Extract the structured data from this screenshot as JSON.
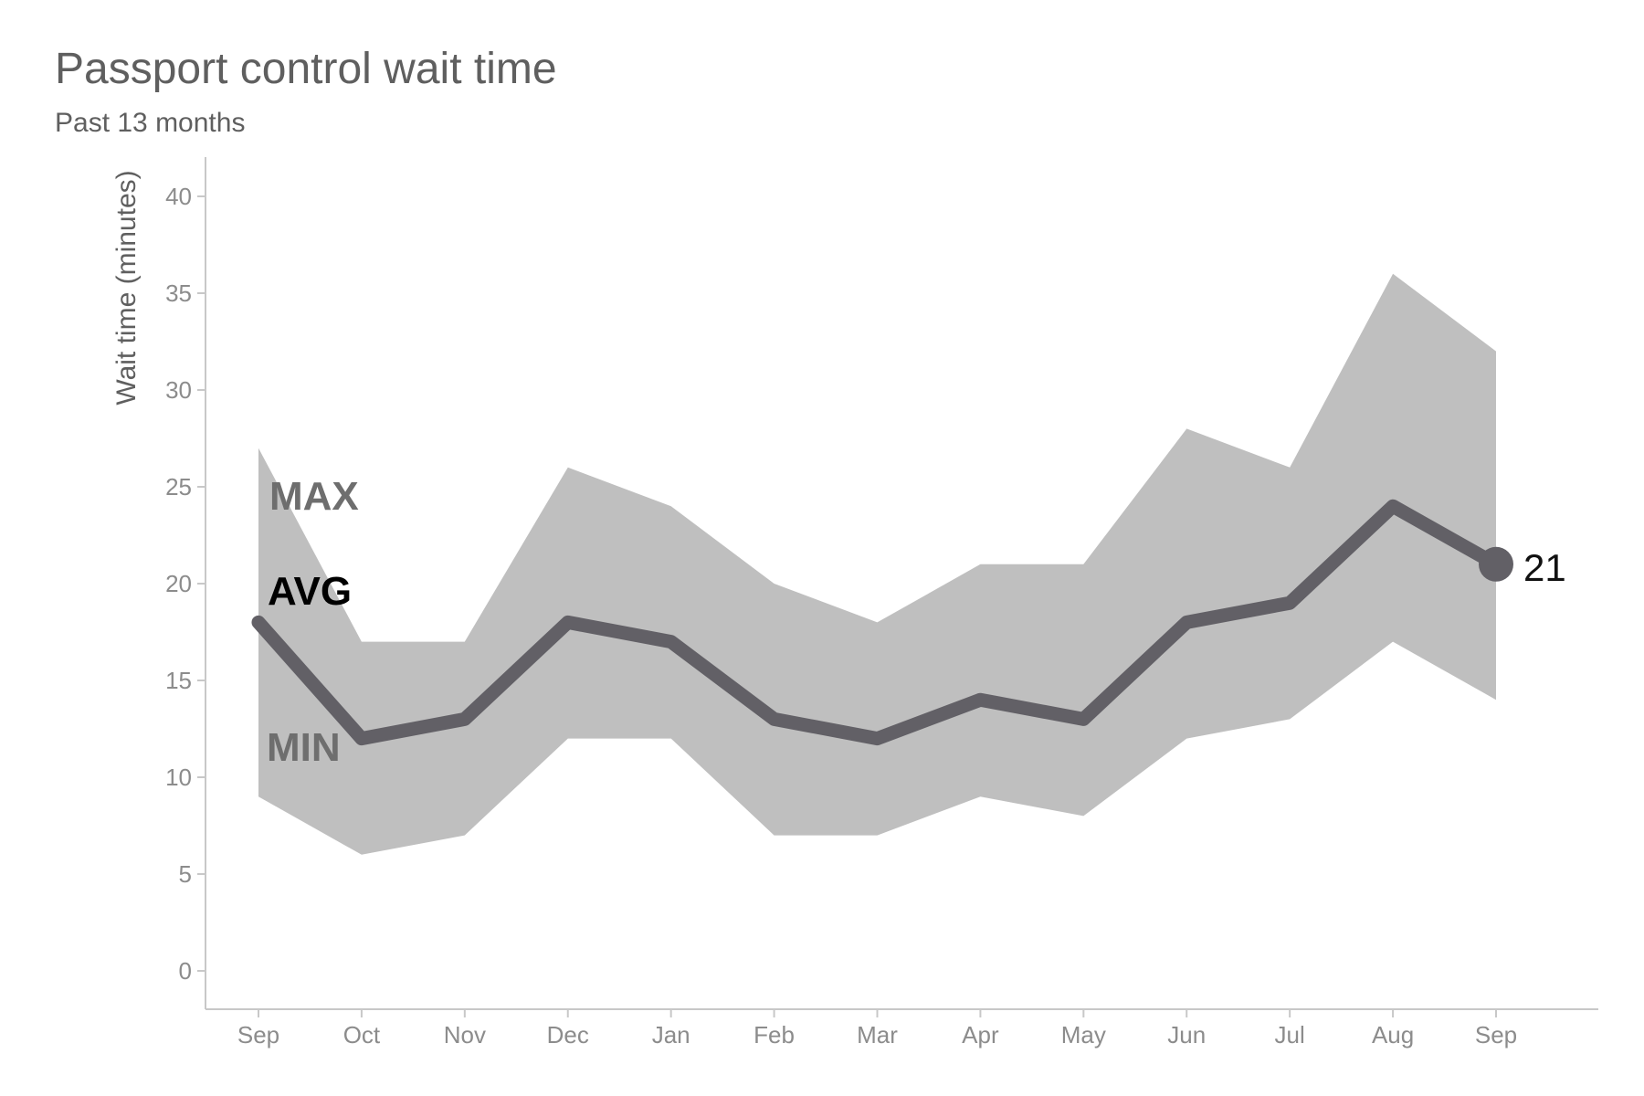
{
  "chart_data": {
    "type": "line",
    "title": "Passport control wait time",
    "subtitle": "Past 13 months",
    "xlabel": "",
    "ylabel": "Wait time (minutes)",
    "ylim": [
      -2,
      42
    ],
    "yticks": [
      0,
      5,
      10,
      15,
      20,
      25,
      30,
      35,
      40
    ],
    "categories": [
      "Sep",
      "Oct",
      "Nov",
      "Dec",
      "Jan",
      "Feb",
      "Mar",
      "Apr",
      "May",
      "Jun",
      "Jul",
      "Aug",
      "Sep"
    ],
    "series": [
      {
        "name": "MAX",
        "values": [
          27,
          17,
          17,
          26,
          24,
          20,
          18,
          21,
          21,
          28,
          26,
          36,
          32
        ]
      },
      {
        "name": "AVG",
        "values": [
          18,
          12,
          13,
          18,
          17,
          13,
          12,
          14,
          13,
          18,
          19,
          24,
          21
        ]
      },
      {
        "name": "MIN",
        "values": [
          9,
          6,
          7,
          12,
          12,
          7,
          7,
          9,
          8,
          12,
          13,
          17,
          14
        ]
      }
    ],
    "end_label": "21",
    "colors": {
      "band": "#bfbfbf",
      "avg_line": "#626066",
      "max_label": "#6e6e6e",
      "min_label": "#6e6e6e",
      "avg_label": "#000000",
      "axis": "#c8c8c8",
      "tick_text": "#8c8c8c"
    },
    "grid": false
  }
}
